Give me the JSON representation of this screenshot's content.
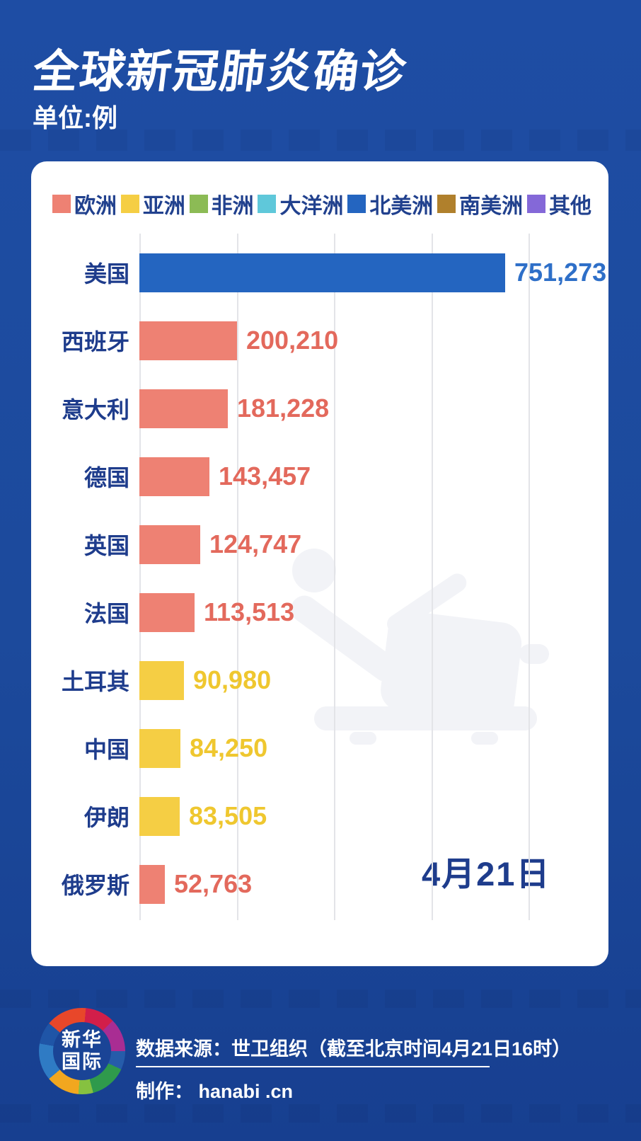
{
  "page": {
    "title": "全球新冠肺炎确诊",
    "unit": "单位:例"
  },
  "colors": {
    "background_top": "#1e4da4",
    "background_bottom": "#173f90",
    "card": "#ffffff",
    "title_text": "#ffffff",
    "label_navy": "#1e3c8c",
    "legend_text": "#21418e",
    "gridline": "#e3e4e8",
    "watermark": "#f2f3f7",
    "europe": "#ee8173",
    "asia": "#f5ce44",
    "africa": "#8cbb55",
    "oceania": "#5fc8da",
    "north_america": "#2465c0",
    "south_america": "#b0802c",
    "other": "#8468d8",
    "europe_value": "#e3695c",
    "asia_value": "#efc72f",
    "north_america_value": "#2e6fc8"
  },
  "legend": [
    {
      "label": "欧洲",
      "color_key": "europe"
    },
    {
      "label": "亚洲",
      "color_key": "asia"
    },
    {
      "label": "非洲",
      "color_key": "africa"
    },
    {
      "label": "大洋洲",
      "color_key": "oceania"
    },
    {
      "label": "北美洲",
      "color_key": "north_america"
    },
    {
      "label": "南美洲",
      "color_key": "south_america"
    },
    {
      "label": "其他",
      "color_key": "other"
    }
  ],
  "chart_data": {
    "type": "bar",
    "orientation": "horizontal",
    "title": "全球新冠肺炎确诊",
    "unit_label": "单位:例",
    "categories": [
      "美国",
      "西班牙",
      "意大利",
      "德国",
      "英国",
      "法国",
      "土耳其",
      "中国",
      "伊朗",
      "俄罗斯"
    ],
    "values": [
      751273,
      200210,
      181228,
      143457,
      124747,
      113513,
      90980,
      84250,
      83505,
      52763
    ],
    "value_labels": [
      "751,273",
      "200,210",
      "181,228",
      "143,457",
      "124,747",
      "113,513",
      "90,980",
      "84,250",
      "83,505",
      "52,763"
    ],
    "continents": [
      "north_america",
      "europe",
      "europe",
      "europe",
      "europe",
      "europe",
      "asia",
      "asia",
      "asia",
      "europe"
    ],
    "xlim": [
      0,
      800000
    ],
    "gridline_interval": 200000,
    "grid": true,
    "legend_position": "top",
    "annotation": "4月21日"
  },
  "footer": {
    "logo_text_line1": "新华",
    "logo_text_line2": "国际",
    "source": "数据来源：世卫组织（截至北京时间4月21日16时）",
    "credit": "制作： hanabi .cn"
  }
}
